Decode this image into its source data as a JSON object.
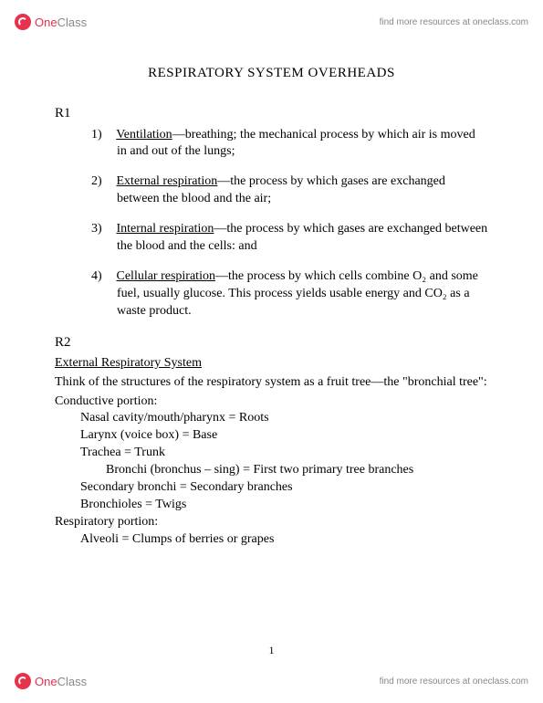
{
  "brand": {
    "one": "One",
    "class": "Class"
  },
  "tagline": "find more resources at oneclass.com",
  "title": "RESPIRATORY SYSTEM OVERHEADS",
  "r1": {
    "label": "R1",
    "items": [
      {
        "num": "1)",
        "term": "Ventilation",
        "text": "—breathing; the mechanical process by which air is moved in and out of the lungs;"
      },
      {
        "num": "2)",
        "term": "External respiration",
        "text": "—the process by which gases are exchanged between the blood and the air;"
      },
      {
        "num": "3)",
        "term": "Internal respiration",
        "text": "—the process by which gases are exchanged between the blood and the cells: and"
      },
      {
        "num": "4)",
        "term": "Cellular respiration",
        "text": "—the process by which cells combine O₂ and some fuel, usually glucose.  This process yields usable energy and CO₂ as a waste product."
      }
    ]
  },
  "r2": {
    "label": "R2",
    "heading": "External Respiratory System",
    "intro": "Think of the structures of the respiratory system as a fruit tree—the \"bronchial tree\":",
    "conductive_label": "Conductive portion:",
    "conductive": [
      "Nasal cavity/mouth/pharynx = Roots",
      "Larynx (voice box) = Base",
      "Trachea = Trunk",
      "Bronchi (bronchus – sing) = First two primary tree branches",
      "Secondary bronchi = Secondary branches",
      "Bronchioles = Twigs"
    ],
    "respiratory_label": "Respiratory portion:",
    "respiratory": [
      "Alveoli = Clumps of berries or grapes"
    ]
  },
  "page_number": "1"
}
